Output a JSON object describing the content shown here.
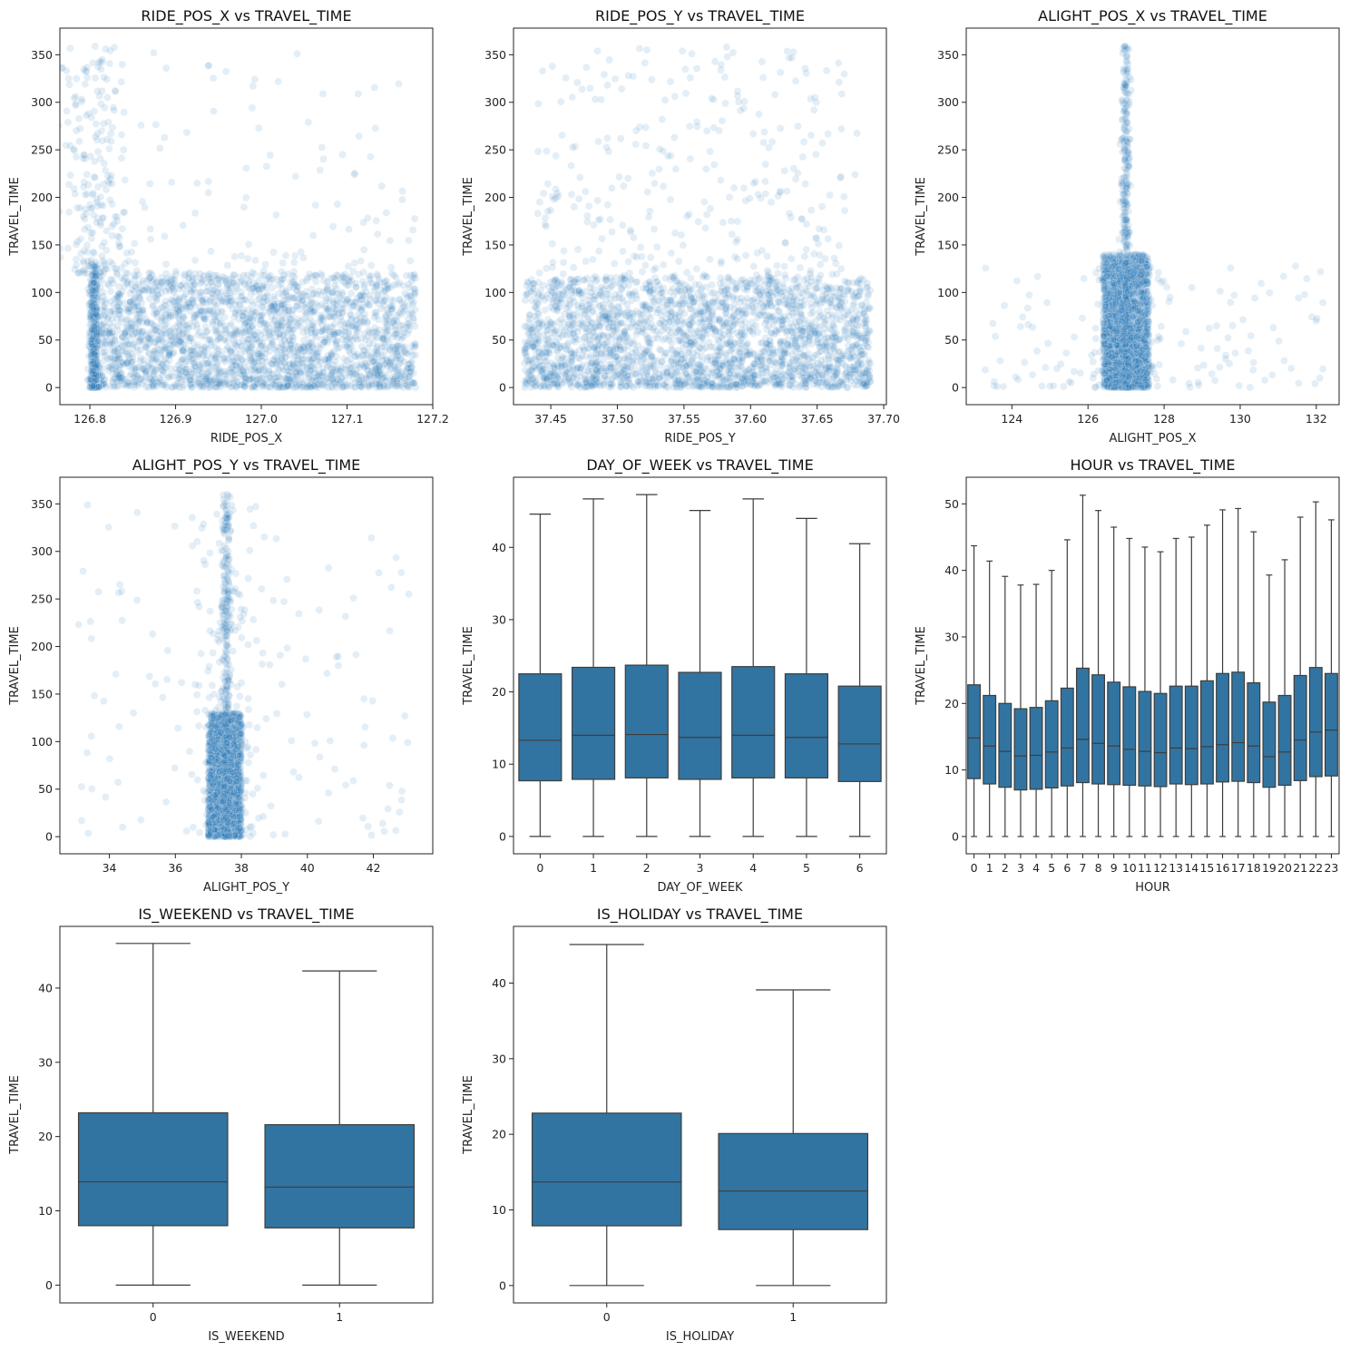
{
  "chart_data": [
    {
      "id": "ride_x",
      "type": "scatter",
      "title": "RIDE_POS_X vs TRAVEL_TIME",
      "xlabel": "RIDE_POS_X",
      "ylabel": "TRAVEL_TIME",
      "xlim": [
        126.765,
        127.2
      ],
      "ylim": [
        -18,
        378
      ],
      "xticks": [
        126.8,
        126.9,
        127.0,
        127.1,
        127.2
      ],
      "xtick_labels": [
        "126.8",
        "126.9",
        "127.0",
        "127.1",
        "127.2"
      ],
      "yticks": [
        0,
        50,
        100,
        150,
        200,
        250,
        300,
        350
      ],
      "ytick_labels": [
        "0",
        "50",
        "100",
        "150",
        "200",
        "250",
        "300",
        "350"
      ],
      "color": "#1f77b4",
      "dense_region": {
        "x": [
          126.8,
          127.18
        ],
        "y": [
          0,
          120
        ]
      },
      "spike": {
        "x": 126.805,
        "y_max": 130
      },
      "sparse_region": {
        "x": [
          126.77,
          127.18
        ],
        "y": [
          120,
          360
        ]
      }
    },
    {
      "id": "ride_y",
      "type": "scatter",
      "title": "RIDE_POS_Y vs TRAVEL_TIME",
      "xlabel": "RIDE_POS_Y",
      "ylabel": "TRAVEL_TIME",
      "xlim": [
        37.422,
        37.702
      ],
      "ylim": [
        -18,
        378
      ],
      "xticks": [
        37.45,
        37.5,
        37.55,
        37.6,
        37.65,
        37.7
      ],
      "xtick_labels": [
        "37.45",
        "37.50",
        "37.55",
        "37.60",
        "37.65",
        "37.70"
      ],
      "yticks": [
        0,
        50,
        100,
        150,
        200,
        250,
        300,
        350
      ],
      "ytick_labels": [
        "0",
        "50",
        "100",
        "150",
        "200",
        "250",
        "300",
        "350"
      ],
      "color": "#1f77b4",
      "dense_region": {
        "x": [
          37.43,
          37.69
        ],
        "y": [
          0,
          115
        ]
      },
      "sparse_region": {
        "x": [
          37.44,
          37.68
        ],
        "y": [
          115,
          360
        ]
      }
    },
    {
      "id": "alight_x",
      "type": "scatter",
      "title": "ALIGHT_POS_X vs TRAVEL_TIME",
      "xlabel": "ALIGHT_POS_X",
      "ylabel": "TRAVEL_TIME",
      "xlim": [
        122.8,
        132.6
      ],
      "ylim": [
        -18,
        378
      ],
      "xticks": [
        124,
        126,
        128,
        130,
        132
      ],
      "xtick_labels": [
        "124",
        "126",
        "128",
        "130",
        "132"
      ],
      "yticks": [
        0,
        50,
        100,
        150,
        200,
        250,
        300,
        350
      ],
      "ytick_labels": [
        "0",
        "50",
        "100",
        "150",
        "200",
        "250",
        "300",
        "350"
      ],
      "color": "#1f77b4",
      "dense_region": {
        "x": [
          126.4,
          127.6
        ],
        "y": [
          0,
          140
        ]
      },
      "spike": {
        "x": 127.0,
        "y_max": 360
      },
      "sparse_region": {
        "x": [
          123.2,
          132.2
        ],
        "y": [
          0,
          130
        ]
      }
    },
    {
      "id": "alight_y",
      "type": "scatter",
      "title": "ALIGHT_POS_Y vs TRAVEL_TIME",
      "xlabel": "ALIGHT_POS_Y",
      "ylabel": "TRAVEL_TIME",
      "xlim": [
        32.5,
        43.8
      ],
      "ylim": [
        -18,
        378
      ],
      "xticks": [
        34,
        36,
        38,
        40,
        42
      ],
      "xtick_labels": [
        "34",
        "36",
        "38",
        "40",
        "42"
      ],
      "yticks": [
        0,
        50,
        100,
        150,
        200,
        250,
        300,
        350
      ],
      "ytick_labels": [
        "0",
        "50",
        "100",
        "150",
        "200",
        "250",
        "300",
        "350"
      ],
      "color": "#1f77b4",
      "dense_region": {
        "x": [
          37.0,
          38.0
        ],
        "y": [
          0,
          130
        ]
      },
      "spike": {
        "x": 37.55,
        "y_max": 360
      },
      "sparse_region": {
        "x": [
          33.0,
          43.4
        ],
        "y": [
          0,
          350
        ]
      }
    },
    {
      "id": "dow",
      "type": "box",
      "title": "DAY_OF_WEEK vs TRAVEL_TIME",
      "xlabel": "DAY_OF_WEEK",
      "ylabel": "TRAVEL_TIME",
      "ylim": [
        -2.4,
        49.7
      ],
      "yticks": [
        0,
        10,
        20,
        30,
        40
      ],
      "ytick_labels": [
        "0",
        "10",
        "20",
        "30",
        "40"
      ],
      "categories": [
        "0",
        "1",
        "2",
        "3",
        "4",
        "5",
        "6"
      ],
      "color": "#3274a1",
      "boxes": [
        {
          "min": 0,
          "q1": 7.7,
          "median": 13.3,
          "q3": 22.5,
          "max": 44.6
        },
        {
          "min": 0,
          "q1": 7.9,
          "median": 14.0,
          "q3": 23.4,
          "max": 46.7
        },
        {
          "min": 0,
          "q1": 8.1,
          "median": 14.1,
          "q3": 23.7,
          "max": 47.3
        },
        {
          "min": 0,
          "q1": 7.9,
          "median": 13.7,
          "q3": 22.7,
          "max": 45.1
        },
        {
          "min": 0,
          "q1": 8.1,
          "median": 14.0,
          "q3": 23.5,
          "max": 46.7
        },
        {
          "min": 0,
          "q1": 8.1,
          "median": 13.7,
          "q3": 22.5,
          "max": 44.0
        },
        {
          "min": 0,
          "q1": 7.6,
          "median": 12.8,
          "q3": 20.8,
          "max": 40.5
        }
      ]
    },
    {
      "id": "hour",
      "type": "box",
      "title": "HOUR vs TRAVEL_TIME",
      "xlabel": "HOUR",
      "ylabel": "TRAVEL_TIME",
      "ylim": [
        -2.6,
        54.0
      ],
      "yticks": [
        0,
        10,
        20,
        30,
        40,
        50
      ],
      "ytick_labels": [
        "0",
        "10",
        "20",
        "30",
        "40",
        "50"
      ],
      "categories": [
        "0",
        "1",
        "2",
        "3",
        "4",
        "5",
        "6",
        "7",
        "8",
        "9",
        "10",
        "11",
        "12",
        "13",
        "14",
        "15",
        "16",
        "17",
        "18",
        "19",
        "20",
        "21",
        "22",
        "23"
      ],
      "color": "#3274a1",
      "boxes": [
        {
          "min": 0,
          "q1": 8.7,
          "median": 14.8,
          "q3": 22.8,
          "max": 43.7
        },
        {
          "min": 0,
          "q1": 7.9,
          "median": 13.6,
          "q3": 21.2,
          "max": 41.4
        },
        {
          "min": 0,
          "q1": 7.4,
          "median": 12.8,
          "q3": 20.0,
          "max": 39.1
        },
        {
          "min": 0,
          "q1": 7.0,
          "median": 12.1,
          "q3": 19.2,
          "max": 37.8
        },
        {
          "min": 0,
          "q1": 7.1,
          "median": 12.2,
          "q3": 19.4,
          "max": 37.9
        },
        {
          "min": 0,
          "q1": 7.3,
          "median": 12.7,
          "q3": 20.4,
          "max": 40.0
        },
        {
          "min": 0,
          "q1": 7.6,
          "median": 13.3,
          "q3": 22.3,
          "max": 44.6
        },
        {
          "min": 0,
          "q1": 8.1,
          "median": 14.6,
          "q3": 25.3,
          "max": 51.3
        },
        {
          "min": 0,
          "q1": 7.9,
          "median": 14.0,
          "q3": 24.3,
          "max": 49.0
        },
        {
          "min": 0,
          "q1": 7.8,
          "median": 13.6,
          "q3": 23.2,
          "max": 46.5
        },
        {
          "min": 0,
          "q1": 7.7,
          "median": 13.1,
          "q3": 22.5,
          "max": 44.8
        },
        {
          "min": 0,
          "q1": 7.6,
          "median": 12.8,
          "q3": 21.8,
          "max": 43.5
        },
        {
          "min": 0,
          "q1": 7.5,
          "median": 12.6,
          "q3": 21.5,
          "max": 42.8
        },
        {
          "min": 0,
          "q1": 7.9,
          "median": 13.3,
          "q3": 22.6,
          "max": 44.8
        },
        {
          "min": 0,
          "q1": 7.8,
          "median": 13.2,
          "q3": 22.6,
          "max": 45.0
        },
        {
          "min": 0,
          "q1": 7.9,
          "median": 13.5,
          "q3": 23.4,
          "max": 46.8
        },
        {
          "min": 0,
          "q1": 8.2,
          "median": 13.8,
          "q3": 24.5,
          "max": 49.1
        },
        {
          "min": 0,
          "q1": 8.3,
          "median": 14.1,
          "q3": 24.7,
          "max": 49.3
        },
        {
          "min": 0,
          "q1": 8.1,
          "median": 13.6,
          "q3": 23.1,
          "max": 45.8
        },
        {
          "min": 0,
          "q1": 7.4,
          "median": 12.0,
          "q3": 20.2,
          "max": 39.3
        },
        {
          "min": 0,
          "q1": 7.7,
          "median": 12.7,
          "q3": 21.2,
          "max": 41.6
        },
        {
          "min": 0,
          "q1": 8.4,
          "median": 14.5,
          "q3": 24.2,
          "max": 48.0
        },
        {
          "min": 0,
          "q1": 9.0,
          "median": 15.7,
          "q3": 25.4,
          "max": 50.3
        },
        {
          "min": 0,
          "q1": 9.1,
          "median": 16.0,
          "q3": 24.5,
          "max": 47.6
        }
      ]
    },
    {
      "id": "weekend",
      "type": "box",
      "title": "IS_WEEKEND vs TRAVEL_TIME",
      "xlabel": "IS_WEEKEND",
      "ylabel": "TRAVEL_TIME",
      "ylim": [
        -2.4,
        48.3
      ],
      "yticks": [
        0,
        10,
        20,
        30,
        40
      ],
      "ytick_labels": [
        "0",
        "10",
        "20",
        "30",
        "40"
      ],
      "categories": [
        "0",
        "1"
      ],
      "color": "#3274a1",
      "boxes": [
        {
          "min": 0,
          "q1": 8.0,
          "median": 13.9,
          "q3": 23.2,
          "max": 46.0
        },
        {
          "min": 0,
          "q1": 7.7,
          "median": 13.2,
          "q3": 21.6,
          "max": 42.3
        }
      ]
    },
    {
      "id": "holiday",
      "type": "box",
      "title": "IS_HOLIDAY vs TRAVEL_TIME",
      "xlabel": "IS_HOLIDAY",
      "ylabel": "TRAVEL_TIME",
      "ylim": [
        -2.3,
        47.5
      ],
      "yticks": [
        0,
        10,
        20,
        30,
        40
      ],
      "ytick_labels": [
        "0",
        "10",
        "20",
        "30",
        "40"
      ],
      "categories": [
        "0",
        "1"
      ],
      "color": "#3274a1",
      "boxes": [
        {
          "min": 0,
          "q1": 7.9,
          "median": 13.7,
          "q3": 22.8,
          "max": 45.1
        },
        {
          "min": 0,
          "q1": 7.4,
          "median": 12.5,
          "q3": 20.1,
          "max": 39.1
        }
      ]
    }
  ]
}
